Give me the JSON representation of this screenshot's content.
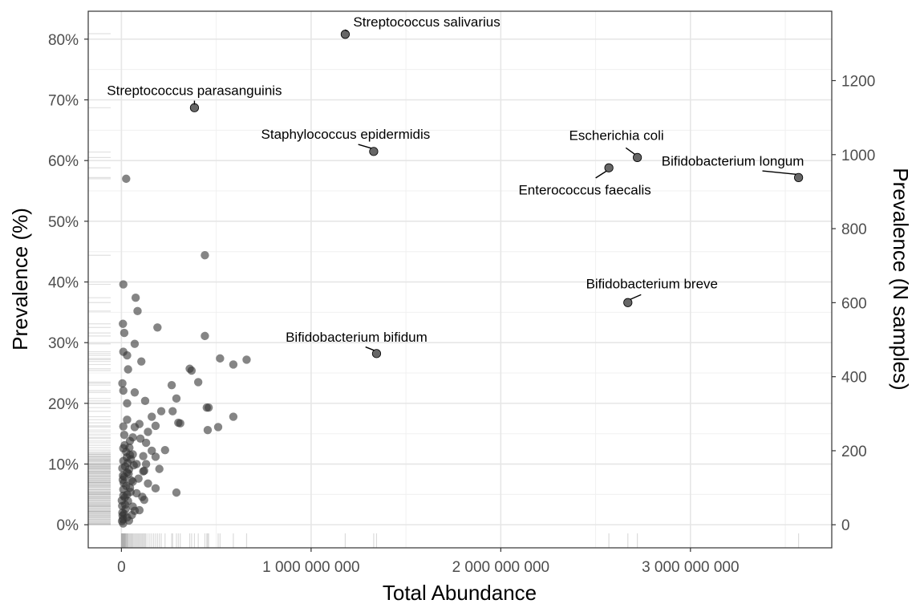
{
  "chart_data": {
    "type": "scatter",
    "xlabel": "Total Abundance",
    "ylabel": "Prevalence (%)",
    "y2label": "Prevalence (N samples)",
    "xlim": [
      -175000000,
      3745000000
    ],
    "ylim": [
      -3.8,
      84.6
    ],
    "y2_per_percent": 16.4,
    "x_ticks": [
      {
        "value": 0,
        "label": "0"
      },
      {
        "value": 1000000000,
        "label": "1 000 000 000"
      },
      {
        "value": 2000000000,
        "label": "2 000 000 000"
      },
      {
        "value": 3000000000,
        "label": "3 000 000 000"
      }
    ],
    "y_ticks": [
      {
        "value": 0,
        "label": "0%"
      },
      {
        "value": 10,
        "label": "10%"
      },
      {
        "value": 20,
        "label": "20%"
      },
      {
        "value": 30,
        "label": "30%"
      },
      {
        "value": 40,
        "label": "40%"
      },
      {
        "value": 50,
        "label": "50%"
      },
      {
        "value": 60,
        "label": "60%"
      },
      {
        "value": 70,
        "label": "70%"
      },
      {
        "value": 80,
        "label": "80%"
      }
    ],
    "y2_ticks": [
      {
        "value": 0,
        "label": "0"
      },
      {
        "value": 200,
        "label": "200"
      },
      {
        "value": 400,
        "label": "400"
      },
      {
        "value": 600,
        "label": "600"
      },
      {
        "value": 800,
        "label": "800"
      },
      {
        "value": 1000,
        "label": "1000"
      },
      {
        "value": 1200,
        "label": "1200"
      }
    ],
    "grid": true,
    "point_color": "#333333",
    "labeled_points": [
      {
        "name": "Streptococcus salivarius",
        "x": 1180000000,
        "y": 80.8,
        "anchor": "start",
        "ldx": 10,
        "ldy": -10
      },
      {
        "name": "Streptococcus parasanguinis",
        "x": 385000000,
        "y": 68.7,
        "anchor": "middle",
        "ldx": 0,
        "ldy": -16
      },
      {
        "name": "Staphylococcus epidermidis",
        "x": 1330000000,
        "y": 61.5,
        "anchor": "middle",
        "ldx": -35,
        "ldy": -16
      },
      {
        "name": "Escherichia coli",
        "x": 2720000000,
        "y": 60.5,
        "anchor": "middle",
        "ldx": -26,
        "ldy": -22
      },
      {
        "name": "Enterococcus faecalis",
        "x": 2570000000,
        "y": 58.8,
        "anchor": "middle",
        "ldx": -30,
        "ldy": 23
      },
      {
        "name": "Bifidobacterium longum",
        "x": 3570000000,
        "y": 57.2,
        "anchor": "middle",
        "ldx": -82,
        "ldy": -15
      },
      {
        "name": "Bifidobacterium breve",
        "x": 2670000000,
        "y": 36.6,
        "anchor": "middle",
        "ldx": 30,
        "ldy": -18
      },
      {
        "name": "Bifidobacterium bifidum",
        "x": 1345000000,
        "y": 28.2,
        "anchor": "middle",
        "ldx": -25,
        "ldy": -15
      }
    ],
    "points": [
      [
        25000000,
        57.0
      ],
      [
        440000000,
        44.4
      ],
      [
        10000000,
        39.6
      ],
      [
        75000000,
        37.4
      ],
      [
        85000000,
        35.2
      ],
      [
        8000000,
        33.1
      ],
      [
        15000000,
        31.6
      ],
      [
        190000000,
        32.5
      ],
      [
        440000000,
        31.1
      ],
      [
        70000000,
        29.8
      ],
      [
        10000000,
        28.5
      ],
      [
        30000000,
        27.9
      ],
      [
        105000000,
        26.9
      ],
      [
        520000000,
        27.4
      ],
      [
        660000000,
        27.2
      ],
      [
        590000000,
        26.4
      ],
      [
        360000000,
        25.7
      ],
      [
        370000000,
        25.4
      ],
      [
        35000000,
        25.6
      ],
      [
        5000000,
        23.3
      ],
      [
        265000000,
        23.0
      ],
      [
        405000000,
        23.5
      ],
      [
        10000000,
        22.1
      ],
      [
        70000000,
        21.8
      ],
      [
        125000000,
        20.4
      ],
      [
        290000000,
        20.8
      ],
      [
        30000000,
        20.0
      ],
      [
        450000000,
        19.3
      ],
      [
        460000000,
        19.3
      ],
      [
        210000000,
        18.7
      ],
      [
        270000000,
        18.7
      ],
      [
        590000000,
        17.8
      ],
      [
        160000000,
        17.8
      ],
      [
        30000000,
        17.3
      ],
      [
        70000000,
        16.1
      ],
      [
        95000000,
        16.6
      ],
      [
        180000000,
        16.3
      ],
      [
        300000000,
        16.8
      ],
      [
        310000000,
        16.7
      ],
      [
        510000000,
        16.1
      ],
      [
        455000000,
        15.6
      ],
      [
        140000000,
        15.3
      ],
      [
        10000000,
        16.2
      ],
      [
        15000000,
        14.8
      ],
      [
        60000000,
        14.4
      ],
      [
        100000000,
        14.2
      ],
      [
        45000000,
        13.8
      ],
      [
        130000000,
        13.5
      ],
      [
        160000000,
        12.2
      ],
      [
        230000000,
        12.3
      ],
      [
        10000000,
        12.6
      ],
      [
        25000000,
        12.0
      ],
      [
        45000000,
        11.5
      ],
      [
        115000000,
        11.3
      ],
      [
        180000000,
        11.2
      ],
      [
        130000000,
        10.0
      ],
      [
        200000000,
        9.2
      ],
      [
        80000000,
        10.0
      ],
      [
        115000000,
        8.8
      ],
      [
        120000000,
        8.9
      ],
      [
        30000000,
        8.6
      ],
      [
        60000000,
        7.1
      ],
      [
        90000000,
        7.6
      ],
      [
        140000000,
        6.8
      ],
      [
        180000000,
        6.0
      ],
      [
        290000000,
        5.3
      ],
      [
        30000000,
        5.0
      ],
      [
        80000000,
        5.2
      ],
      [
        110000000,
        4.6
      ],
      [
        120000000,
        4.1
      ],
      [
        10000000,
        4.8
      ],
      [
        20000000,
        3.3
      ],
      [
        60000000,
        3.0
      ],
      [
        95000000,
        2.4
      ],
      [
        5000000,
        2.0
      ],
      [
        10000000,
        10.5
      ],
      [
        20000000,
        9.6
      ],
      [
        40000000,
        9.1
      ],
      [
        50000000,
        10.8
      ],
      [
        60000000,
        11.6
      ],
      [
        15000000,
        7.9
      ],
      [
        25000000,
        6.4
      ],
      [
        45000000,
        6.1
      ],
      [
        10000000,
        5.8
      ],
      [
        35000000,
        3.9
      ],
      [
        5000000,
        9.3
      ],
      [
        8000000,
        8.1
      ],
      [
        12000000,
        6.9
      ],
      [
        18000000,
        4.5
      ],
      [
        4000000,
        3.1
      ],
      [
        6000000,
        1.5
      ],
      [
        3000000,
        0.6
      ],
      [
        8000000,
        0.9
      ],
      [
        14000000,
        1.8
      ],
      [
        22000000,
        2.6
      ],
      [
        30000000,
        1.2
      ],
      [
        40000000,
        0.7
      ],
      [
        55000000,
        1.6
      ],
      [
        70000000,
        2.3
      ],
      [
        9000000,
        0.2
      ],
      [
        2000000,
        4.0
      ],
      [
        28000000,
        11.1
      ],
      [
        38000000,
        8.4
      ],
      [
        52000000,
        7.3
      ],
      [
        65000000,
        9.8
      ],
      [
        42000000,
        12.7
      ],
      [
        17000000,
        13.1
      ],
      [
        33000000,
        10.2
      ],
      [
        7000000,
        7.4
      ],
      [
        48000000,
        5.4
      ]
    ],
    "rug_y": [
      80.9,
      68.7,
      61.4,
      60.5,
      58.8,
      57.2,
      57.0,
      44.4,
      39.6,
      37.4,
      36.6,
      35.2,
      33.1,
      32.5,
      31.6,
      31.1,
      29.8,
      28.5,
      28.2,
      27.9,
      27.4,
      27.2,
      26.9,
      26.4,
      25.7,
      25.4,
      23.5,
      23.3,
      23.0,
      22.1,
      21.8,
      20.8,
      20.4,
      20.0,
      19.3,
      18.7,
      17.8,
      17.3,
      16.8,
      16.3,
      16.1,
      15.6,
      15.3,
      14.8,
      14.4,
      14.2,
      13.8,
      13.5,
      13.1,
      12.7,
      12.3,
      12.0,
      11.6,
      11.2,
      10.8,
      10.5,
      10.0,
      9.6,
      9.2,
      8.8,
      8.4,
      8.1,
      7.6,
      7.3,
      7.0,
      6.6,
      6.2,
      5.8,
      5.4,
      5.0,
      4.7,
      4.3,
      4.0,
      3.6,
      3.3,
      3.0,
      2.7,
      2.4,
      2.1,
      1.8,
      1.5,
      1.2,
      0.9,
      0.6,
      0.3,
      0.1,
      2.2,
      3.1,
      4.5,
      5.2,
      6.4,
      6.9,
      7.9,
      8.6,
      9.4,
      9.8
    ],
    "rug_x": [
      0,
      2000000,
      4000000,
      6000000,
      8000000,
      10000000,
      12000000,
      14000000,
      16000000,
      18000000,
      20000000,
      22000000,
      25000000,
      28000000,
      30000000,
      33000000,
      36000000,
      40000000,
      44000000,
      48000000,
      52000000,
      56000000,
      60000000,
      65000000,
      70000000,
      75000000,
      80000000,
      85000000,
      90000000,
      95000000,
      100000000,
      105000000,
      110000000,
      115000000,
      120000000,
      125000000,
      130000000,
      140000000,
      150000000,
      160000000,
      170000000,
      180000000,
      190000000,
      200000000,
      210000000,
      230000000,
      265000000,
      270000000,
      290000000,
      300000000,
      310000000,
      360000000,
      370000000,
      385000000,
      405000000,
      440000000,
      450000000,
      455000000,
      460000000,
      510000000,
      520000000,
      590000000,
      660000000,
      1180000000,
      1330000000,
      1345000000,
      2570000000,
      2670000000,
      2720000000,
      3570000000
    ]
  }
}
